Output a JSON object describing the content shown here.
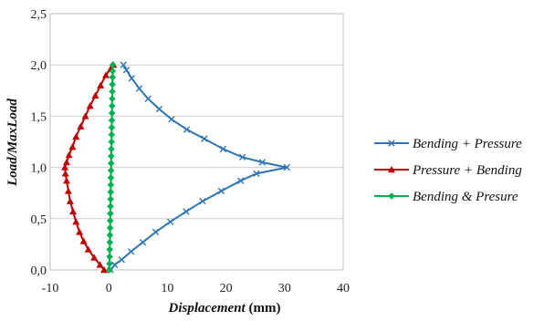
{
  "chart_data": {
    "type": "line",
    "xlabel_italic": "Displacement",
    "xlabel_unit": " (mm)",
    "ylabel": "Load/MaxLoad",
    "xlim": [
      -10,
      40
    ],
    "ylim": [
      0,
      2.5
    ],
    "xticks": [
      -10,
      0,
      10,
      20,
      30,
      40
    ],
    "yticks": [
      "0,0",
      "0,5",
      "1,0",
      "1,5",
      "2,0",
      "2,5"
    ],
    "grid": "horizontal",
    "legend_position": "right",
    "series": [
      {
        "name": "Bending + Pressure",
        "color": "#2e75b6",
        "marker": "x",
        "points": [
          [
            0.3,
            0.0
          ],
          [
            1.0,
            0.05
          ],
          [
            2.2,
            0.1
          ],
          [
            3.8,
            0.18
          ],
          [
            5.8,
            0.27
          ],
          [
            8.0,
            0.37
          ],
          [
            10.5,
            0.47
          ],
          [
            13.2,
            0.57
          ],
          [
            16.0,
            0.67
          ],
          [
            19.2,
            0.77
          ],
          [
            22.5,
            0.87
          ],
          [
            25.2,
            0.94
          ],
          [
            30.4,
            1.0
          ],
          [
            26.2,
            1.05
          ],
          [
            22.8,
            1.1
          ],
          [
            19.5,
            1.18
          ],
          [
            16.3,
            1.28
          ],
          [
            13.3,
            1.37
          ],
          [
            10.7,
            1.47
          ],
          [
            8.6,
            1.57
          ],
          [
            6.7,
            1.67
          ],
          [
            5.2,
            1.77
          ],
          [
            3.9,
            1.87
          ],
          [
            3.0,
            1.95
          ],
          [
            2.5,
            2.0
          ]
        ]
      },
      {
        "name": "Pressure + Bending",
        "color": "#c00000",
        "marker": "triangle",
        "points": [
          [
            -0.8,
            0.0
          ],
          [
            -1.5,
            0.05
          ],
          [
            -2.5,
            0.12
          ],
          [
            -3.5,
            0.2
          ],
          [
            -4.3,
            0.28
          ],
          [
            -5.0,
            0.37
          ],
          [
            -5.6,
            0.47
          ],
          [
            -6.1,
            0.57
          ],
          [
            -6.6,
            0.67
          ],
          [
            -6.9,
            0.77
          ],
          [
            -7.2,
            0.87
          ],
          [
            -7.4,
            0.94
          ],
          [
            -7.5,
            1.0
          ],
          [
            -7.2,
            1.05
          ],
          [
            -6.8,
            1.12
          ],
          [
            -6.2,
            1.2
          ],
          [
            -5.6,
            1.3
          ],
          [
            -4.8,
            1.4
          ],
          [
            -4.0,
            1.5
          ],
          [
            -3.2,
            1.6
          ],
          [
            -2.3,
            1.7
          ],
          [
            -1.4,
            1.8
          ],
          [
            -0.5,
            1.9
          ],
          [
            0.3,
            1.96
          ],
          [
            0.8,
            2.0
          ]
        ]
      },
      {
        "name": "Bending & Presure",
        "color": "#00b050",
        "marker": "diamond",
        "points": [
          [
            0.1,
            0.0
          ],
          [
            0.12,
            0.06
          ],
          [
            0.14,
            0.13
          ],
          [
            0.16,
            0.2
          ],
          [
            0.18,
            0.27
          ],
          [
            0.2,
            0.34
          ],
          [
            0.22,
            0.41
          ],
          [
            0.24,
            0.48
          ],
          [
            0.26,
            0.55
          ],
          [
            0.28,
            0.62
          ],
          [
            0.3,
            0.69
          ],
          [
            0.32,
            0.76
          ],
          [
            0.34,
            0.83
          ],
          [
            0.36,
            0.9
          ],
          [
            0.38,
            0.97
          ],
          [
            0.4,
            1.04
          ],
          [
            0.42,
            1.11
          ],
          [
            0.44,
            1.18
          ],
          [
            0.46,
            1.25
          ],
          [
            0.48,
            1.32
          ],
          [
            0.5,
            1.39
          ],
          [
            0.52,
            1.46
          ],
          [
            0.54,
            1.53
          ],
          [
            0.56,
            1.6
          ],
          [
            0.58,
            1.67
          ],
          [
            0.6,
            1.74
          ],
          [
            0.62,
            1.81
          ],
          [
            0.64,
            1.88
          ],
          [
            0.66,
            1.94
          ],
          [
            0.68,
            2.0
          ]
        ]
      }
    ]
  }
}
